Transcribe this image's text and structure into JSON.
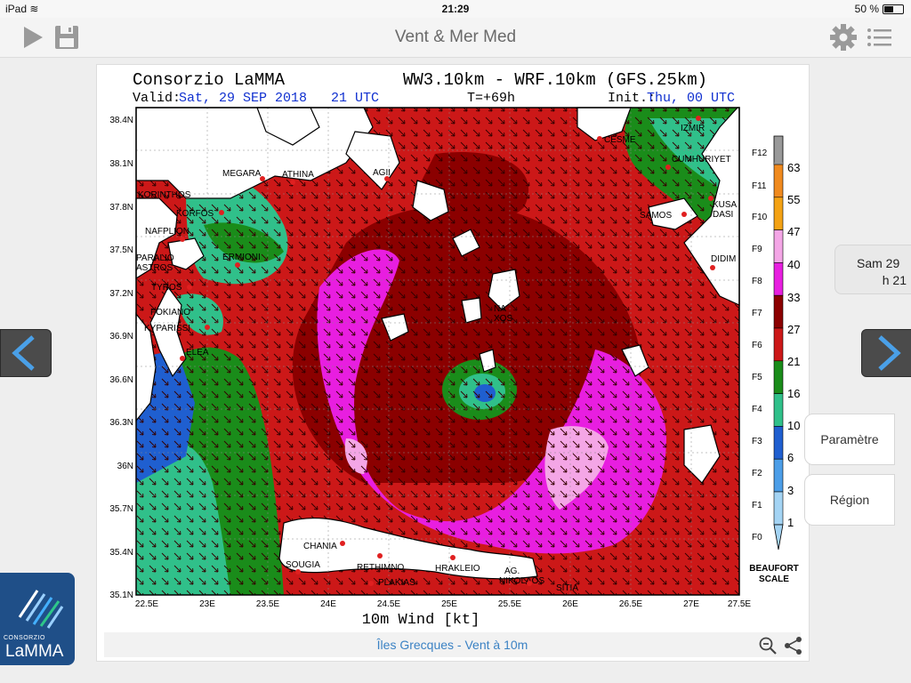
{
  "status": {
    "device": "iPad",
    "time": "21:29",
    "battery": "50 %"
  },
  "nav": {
    "title": "Vent & Mer Med"
  },
  "map": {
    "header_left": "Consorzio LaMMA",
    "header_model": "WW3.10km - WRF.10km (GFS.25km)",
    "valid_label": "Valid:",
    "valid_value": "Sat, 29 SEP 2018   21 UTC",
    "t_label": "T=+69h",
    "init_label": "Init.:",
    "init_value": "Thu, 00 UTC",
    "lat_labels": [
      "38.4N",
      "38.1N",
      "37.8N",
      "37.5N",
      "37.2N",
      "36.9N",
      "36.6N",
      "36.3N",
      "36N",
      "35.7N",
      "35.4N",
      "35.1N"
    ],
    "lon_labels": [
      "22.5E",
      "23E",
      "23.5E",
      "24E",
      "24.5E",
      "25E",
      "25.5E",
      "26E",
      "26.5E",
      "27E",
      "27.5E"
    ],
    "footer": "10m Wind [kt]",
    "places": [
      {
        "name": "CESME"
      },
      {
        "name": "IZMIR"
      },
      {
        "name": "CUMHURIYET"
      },
      {
        "name": "MEGARA"
      },
      {
        "name": "ATHINA"
      },
      {
        "name": "AGII"
      },
      {
        "name": "KORINTHOS"
      },
      {
        "name": "KORFOS"
      },
      {
        "name": "SAMOS"
      },
      {
        "name": "KUSA"
      },
      {
        "name": "DASI"
      },
      {
        "name": "NAFPLION"
      },
      {
        "name": "ERMIONI"
      },
      {
        "name": "PARALIO"
      },
      {
        "name": "ASTROS"
      },
      {
        "name": "DIDIM"
      },
      {
        "name": "TYROS"
      },
      {
        "name": "FOKIANO"
      },
      {
        "name": "KYPARISSI"
      },
      {
        "name": "NA"
      },
      {
        "name": "XOS"
      },
      {
        "name": "ELEA"
      },
      {
        "name": "CHANIA"
      },
      {
        "name": "SOUGIA"
      },
      {
        "name": "RETHIMNO"
      },
      {
        "name": "HRAKLEIO"
      },
      {
        "name": "AG."
      },
      {
        "name": "NIKOLAOS"
      },
      {
        "name": "PLAKIAS"
      },
      {
        "name": "SITIA"
      }
    ],
    "scale": {
      "f_labels": [
        "F12",
        "F11",
        "F10",
        "F9",
        "F8",
        "F7",
        "F6",
        "F5",
        "F4",
        "F3",
        "F2",
        "F1",
        "F0"
      ],
      "kt_labels": [
        "63",
        "55",
        "47",
        "40",
        "33",
        "27",
        "21",
        "16",
        "10",
        "6",
        "3",
        "1"
      ],
      "title1": "BEAUFORT",
      "title2": "SCALE",
      "colors": [
        "#f08a1e",
        "#f4a214",
        "#f4a6e6",
        "#e81ee0",
        "#8b0000",
        "#cc1818",
        "#1a8c1a",
        "#30c08a",
        "#1f5fd0",
        "#4c9ee8",
        "#a4d4f4"
      ]
    }
  },
  "caption": "Îles Grecques - Vent à 10m",
  "side": {
    "day": "Sam 29",
    "hour": "h 21"
  },
  "buttons": {
    "param": "Paramètre",
    "region": "Région"
  },
  "logo": {
    "small": "CONSORZIO",
    "big": "LaMMA"
  },
  "colors": {
    "accent": "#3b82c4",
    "nav_title": "#6a6a6a"
  },
  "icons": [
    "play-icon",
    "save-icon",
    "gear-icon",
    "list-icon",
    "chevron-left-icon",
    "chevron-right-icon",
    "zoom-out-icon",
    "share-icon"
  ]
}
